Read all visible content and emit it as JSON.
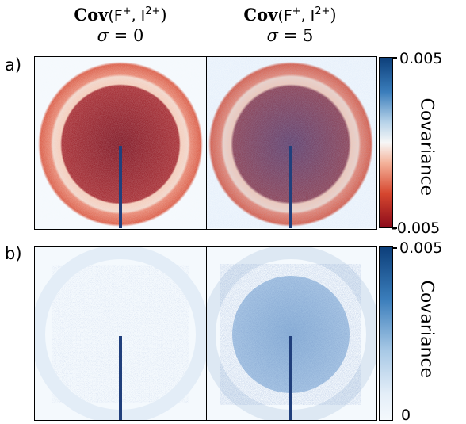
{
  "columns": [
    {
      "title_bold": "Cov",
      "title_args": "(F",
      "title_sup1": "+",
      "title_sep": ", I",
      "title_sup2": "2+",
      "title_close": ")",
      "sigma_sym": "σ",
      "sigma_eq": " = ",
      "sigma_val": "0"
    },
    {
      "title_bold": "Cov",
      "title_args": "(F",
      "title_sup1": "+",
      "title_sep": ", I",
      "title_sup2": "2+",
      "title_close": ")",
      "sigma_sym": "σ",
      "sigma_eq": " = ",
      "sigma_val": "5"
    }
  ],
  "panels": [
    {
      "label": "a)",
      "colorbar": {
        "max": "0.005",
        "min": "-0.005",
        "label": "Covariance",
        "colors": [
          "#0d3f7a",
          "#4f8fc3",
          "#f7f7f7",
          "#e4725a",
          "#a5111d"
        ]
      }
    },
    {
      "label": "b)",
      "colorbar": {
        "max": "0.005",
        "min": "0",
        "label": "Covariance",
        "colors": [
          "#0d3f7a",
          "#4f8fc3",
          "#c9def0",
          "#f4f9fd"
        ]
      }
    }
  ]
}
